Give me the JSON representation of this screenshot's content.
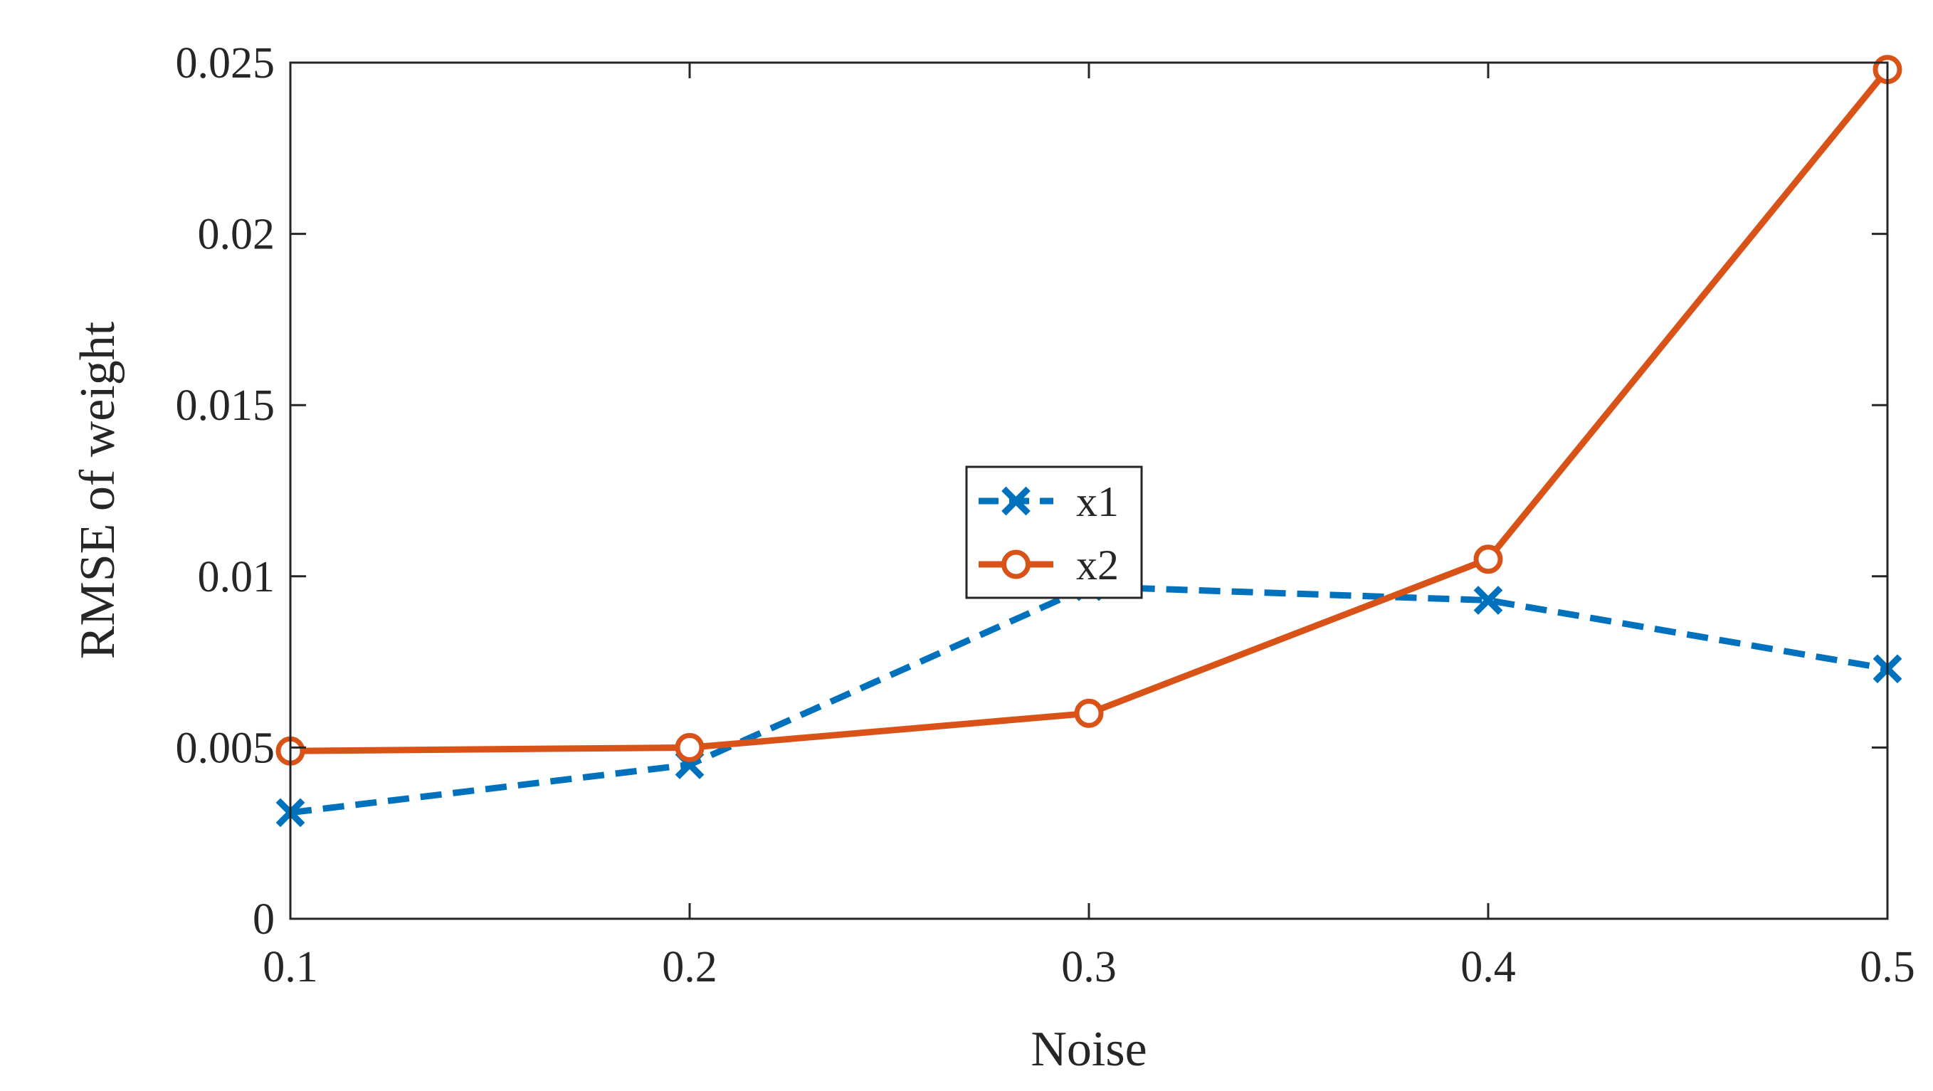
{
  "chart_data": {
    "type": "line",
    "title": "",
    "xlabel": "Noise",
    "ylabel": "RMSE of weight",
    "x": [
      0.1,
      0.2,
      0.3,
      0.4,
      0.5
    ],
    "xlim": [
      0.1,
      0.5
    ],
    "ylim": [
      0,
      0.025
    ],
    "xticks": [
      "0.1",
      "0.2",
      "0.3",
      "0.4",
      "0.5"
    ],
    "yticks": [
      "0",
      "0.005",
      "0.01",
      "0.015",
      "0.02",
      "0.025"
    ],
    "grid": false,
    "legend_position": "center",
    "series": [
      {
        "name": "x1",
        "color": "#0072BD",
        "line": "dashed",
        "marker": "x",
        "values": [
          0.0031,
          0.0045,
          0.0097,
          0.0093,
          0.0073
        ]
      },
      {
        "name": "x2",
        "color": "#D95319",
        "line": "solid",
        "marker": "o",
        "values": [
          0.0049,
          0.005,
          0.006,
          0.0105,
          0.0248
        ]
      }
    ]
  }
}
